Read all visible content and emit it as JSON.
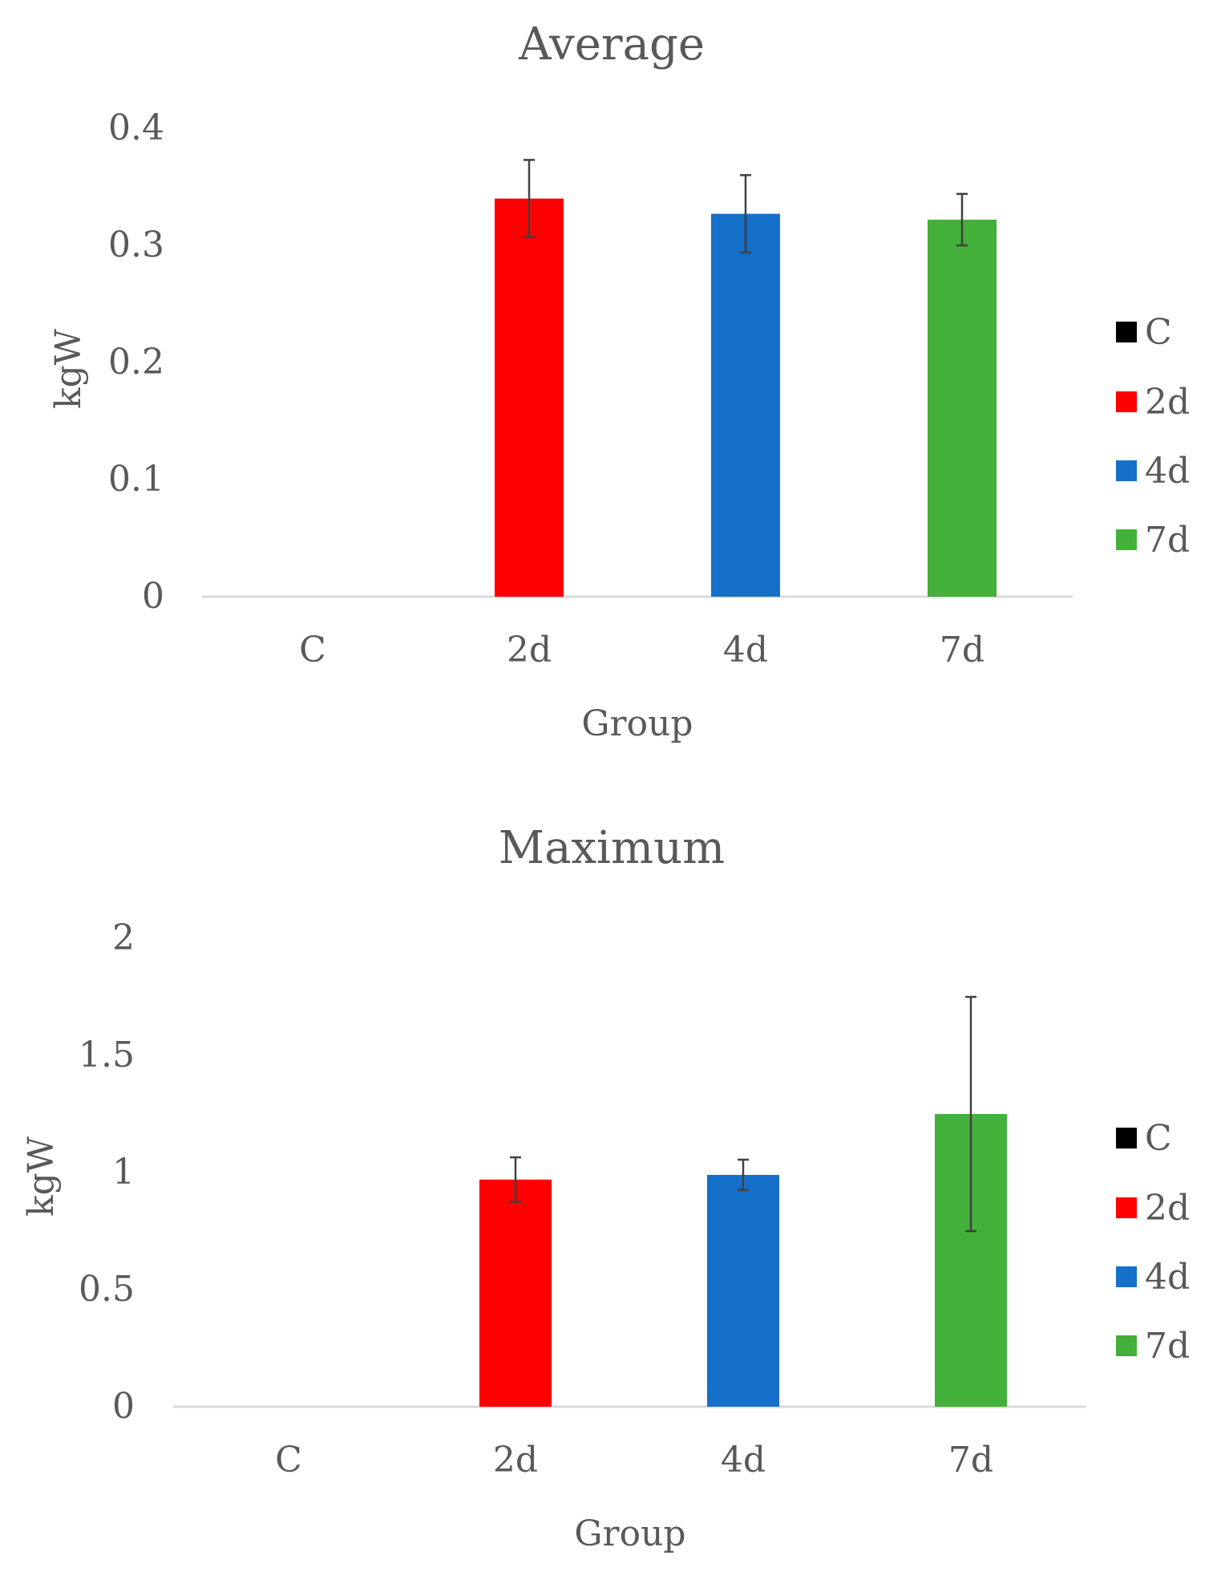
{
  "chart_data": [
    {
      "type": "bar",
      "title": "Average",
      "categories": [
        "C",
        "2d",
        "4d",
        "7d"
      ],
      "values": [
        0,
        0.34,
        0.327,
        0.322
      ],
      "errors": [
        0,
        0.033,
        0.033,
        0.022
      ],
      "colors": [
        "#000000",
        "#ff0000",
        "#1570c9",
        "#43b03a"
      ],
      "xlabel": "Group",
      "ylabel": "kgW",
      "ylim": [
        0,
        0.4
      ],
      "yticks": [
        "0",
        "0.1",
        "0.2",
        "0.3",
        "0.4"
      ],
      "legend": [
        "C",
        "2d",
        "4d",
        "7d"
      ],
      "legend_position": "right",
      "grid": false
    },
    {
      "type": "bar",
      "title": "Maximum",
      "categories": [
        "C",
        "2d",
        "4d",
        "7d"
      ],
      "values": [
        0,
        0.97,
        0.99,
        1.25
      ],
      "errors": [
        0,
        0.095,
        0.065,
        0.5
      ],
      "colors": [
        "#000000",
        "#ff0000",
        "#1570c9",
        "#43b03a"
      ],
      "xlabel": "Group",
      "ylabel": "kgW",
      "ylim": [
        0,
        2
      ],
      "yticks": [
        "0",
        "0.5",
        "1",
        "1.5",
        "2"
      ],
      "legend": [
        "C",
        "2d",
        "4d",
        "7d"
      ],
      "legend_position": "right",
      "grid": false
    }
  ]
}
